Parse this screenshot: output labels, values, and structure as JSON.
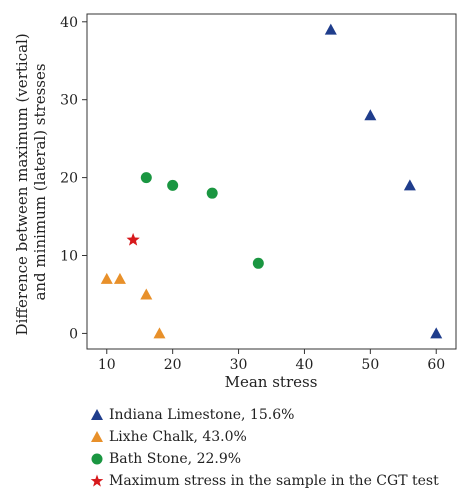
{
  "chart_data": {
    "type": "scatter",
    "xlabel": "Mean stress",
    "ylabel_lines": [
      "Difference between maximum (vertical)",
      "and minimum (lateral) stresses"
    ],
    "xlim": [
      7,
      63
    ],
    "ylim": [
      -2,
      41
    ],
    "xticks": [
      10,
      20,
      30,
      40,
      50,
      60
    ],
    "yticks": [
      0,
      10,
      20,
      30,
      40
    ],
    "grid": false,
    "legend_position": "below",
    "series": [
      {
        "name": "Indiana Limestone, 15.6%",
        "marker": "triangle",
        "color": "#1f3d8c",
        "points": [
          [
            44,
            39
          ],
          [
            50,
            28
          ],
          [
            56,
            19
          ],
          [
            60,
            0
          ]
        ]
      },
      {
        "name": "Lixhe Chalk, 43.0%",
        "marker": "triangle",
        "color": "#e8902a",
        "points": [
          [
            10,
            7
          ],
          [
            12,
            7
          ],
          [
            16,
            5
          ],
          [
            18,
            0
          ]
        ]
      },
      {
        "name": "Bath Stone, 22.9%",
        "marker": "circle",
        "color": "#1a9641",
        "points": [
          [
            16,
            20
          ],
          [
            20,
            19
          ],
          [
            26,
            18
          ],
          [
            33,
            9
          ]
        ]
      },
      {
        "name": "Maximum stress in the sample in the CGT test",
        "marker": "star",
        "color": "#d7191c",
        "points": [
          [
            14,
            12
          ]
        ]
      }
    ]
  }
}
